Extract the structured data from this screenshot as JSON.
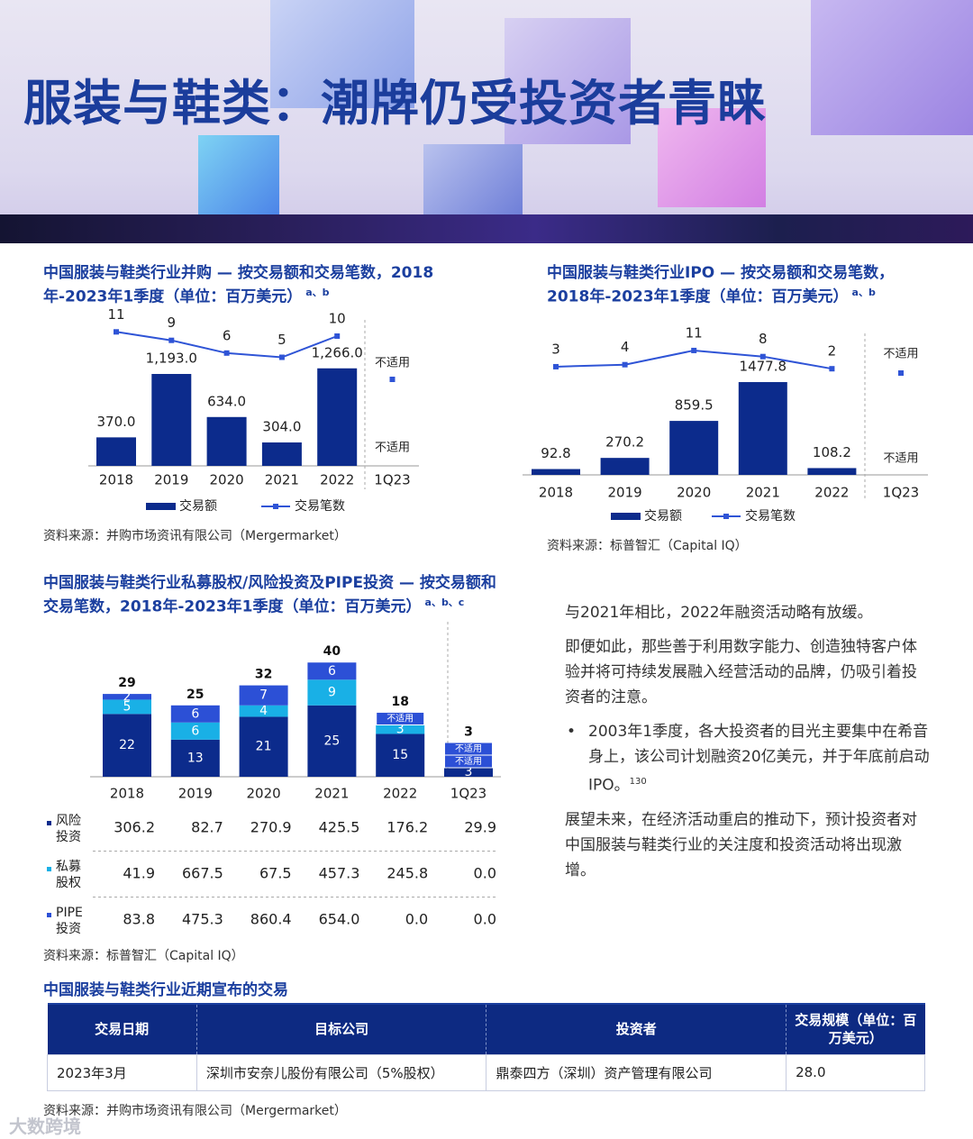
{
  "title": "服装与鞋类：潮牌仍受投资者青睐",
  "chart_data": [
    {
      "type": "bar_line",
      "title": "中国服装与鞋类行业并购 — 按交易额和交易笔数，2018年-2023年1季度（单位：百万美元）",
      "note_marks": "a、b",
      "categories": [
        "2018",
        "2019",
        "2020",
        "2021",
        "2022",
        "1Q23"
      ],
      "series": [
        {
          "name": "交易额",
          "type": "bar",
          "color": "#0c2b8c",
          "values": [
            370.0,
            1193.0,
            634.0,
            304.0,
            1266.0,
            null
          ],
          "value_labels": [
            "370.0",
            "1,193.0",
            "634.0",
            "304.0",
            "1,266.0",
            "不适用"
          ]
        },
        {
          "name": "交易笔数",
          "type": "line",
          "axis": "y2",
          "color": "#2f54d6",
          "values": [
            11,
            9,
            6,
            5,
            10,
            null
          ],
          "value_labels": [
            "11",
            "9",
            "6",
            "5",
            "10",
            "不适用"
          ]
        }
      ],
      "ylim": [
        0,
        1400
      ],
      "y2lim": [
        0,
        20
      ],
      "source": "资料来源：并购市场资讯有限公司（Mergermarket）"
    },
    {
      "type": "bar_line",
      "title": "中国服装与鞋类行业IPO — 按交易额和交易笔数，2018年-2023年1季度（单位：百万美元）",
      "note_marks": "a、b",
      "categories": [
        "2018",
        "2019",
        "2020",
        "2021",
        "2022",
        "1Q23"
      ],
      "series": [
        {
          "name": "交易额",
          "type": "bar",
          "color": "#0c2b8c",
          "values": [
            92.8,
            270.2,
            859.5,
            1477.8,
            108.2,
            null
          ],
          "value_labels": [
            "92.8",
            "270.2",
            "859.5",
            "1477.8",
            "108.2",
            "不适用"
          ]
        },
        {
          "name": "交易笔数",
          "type": "line",
          "axis": "y2",
          "color": "#2f54d6",
          "values": [
            3,
            4,
            11,
            8,
            2,
            null
          ],
          "value_labels": [
            "3",
            "4",
            "11",
            "8",
            "2",
            "不适用"
          ]
        }
      ],
      "ylim": [
        0,
        1600
      ],
      "y2lim": [
        0,
        20
      ],
      "source": "资料来源：标普智汇（Capital IQ）"
    },
    {
      "type": "stacked_bar",
      "title": "中国服装与鞋类行业私募股权/风险投资及PIPE投资 — 按交易额和交易笔数，2018年-2023年1季度（单位：百万美元）",
      "note_marks": "a、b、c",
      "categories": [
        "2018",
        "2019",
        "2020",
        "2021",
        "2022",
        "1Q23"
      ],
      "series": [
        {
          "name": "风险投资",
          "color": "#0c2b8c",
          "values": [
            22,
            13,
            21,
            25,
            15,
            3
          ],
          "value_labels": [
            "22",
            "13",
            "21",
            "25",
            "15",
            "3"
          ],
          "table_values": [
            "306.2",
            "82.7",
            "270.9",
            "425.5",
            "176.2",
            "29.9"
          ]
        },
        {
          "name": "私募股权",
          "color": "#19b0e6",
          "values": [
            5,
            6,
            4,
            9,
            3,
            null
          ],
          "value_labels": [
            "5",
            "6",
            "4",
            "9",
            "3",
            "不适用"
          ],
          "table_values": [
            "41.9",
            "667.5",
            "67.5",
            "457.3",
            "245.8",
            "0.0"
          ]
        },
        {
          "name": "PIPE投资",
          "color": "#2c50d6",
          "values": [
            2,
            6,
            7,
            6,
            null,
            null
          ],
          "value_labels": [
            "2",
            "6",
            "7",
            "6",
            "不适用",
            "不适用"
          ],
          "table_values": [
            "83.8",
            "475.3",
            "860.4",
            "654.0",
            "0.0",
            "0.0"
          ]
        }
      ],
      "totals": [
        29,
        25,
        32,
        40,
        18,
        3
      ],
      "ylim": [
        0,
        45
      ],
      "source": "资料来源：标普智汇（Capital IQ）"
    }
  ],
  "text": {
    "paragraphs": [
      "与2021年相比，2022年融资活动略有放缓。",
      "即便如此，那些善于利用数字能力、创造独特客户体验并将可持续发展融入经营活动的品牌，仍吸引着投资者的注意。"
    ],
    "bullet": "2003年1季度，各大投资者的目光主要集中在希音身上，该公司计划融资20亿美元，并于年底前启动IPO。",
    "bullet_note": "130",
    "closing": "展望未来，在经济活动重启的推动下，预计投资者对中国服装与鞋类行业的关注度和投资活动将出现激增。"
  },
  "deals": {
    "title": "中国服装与鞋类行业近期宣布的交易",
    "columns": [
      "交易日期",
      "目标公司",
      "投资者",
      "交易规模（单位：百万美元）"
    ],
    "rows": [
      [
        "2023年3月",
        "深圳市安奈儿股份有限公司（5%股权）",
        "鼎泰四方（深圳）资产管理有限公司",
        "28.0"
      ]
    ],
    "source": "资料来源：并购市场资讯有限公司（Mergermarket）"
  },
  "watermark": "大数跨境"
}
